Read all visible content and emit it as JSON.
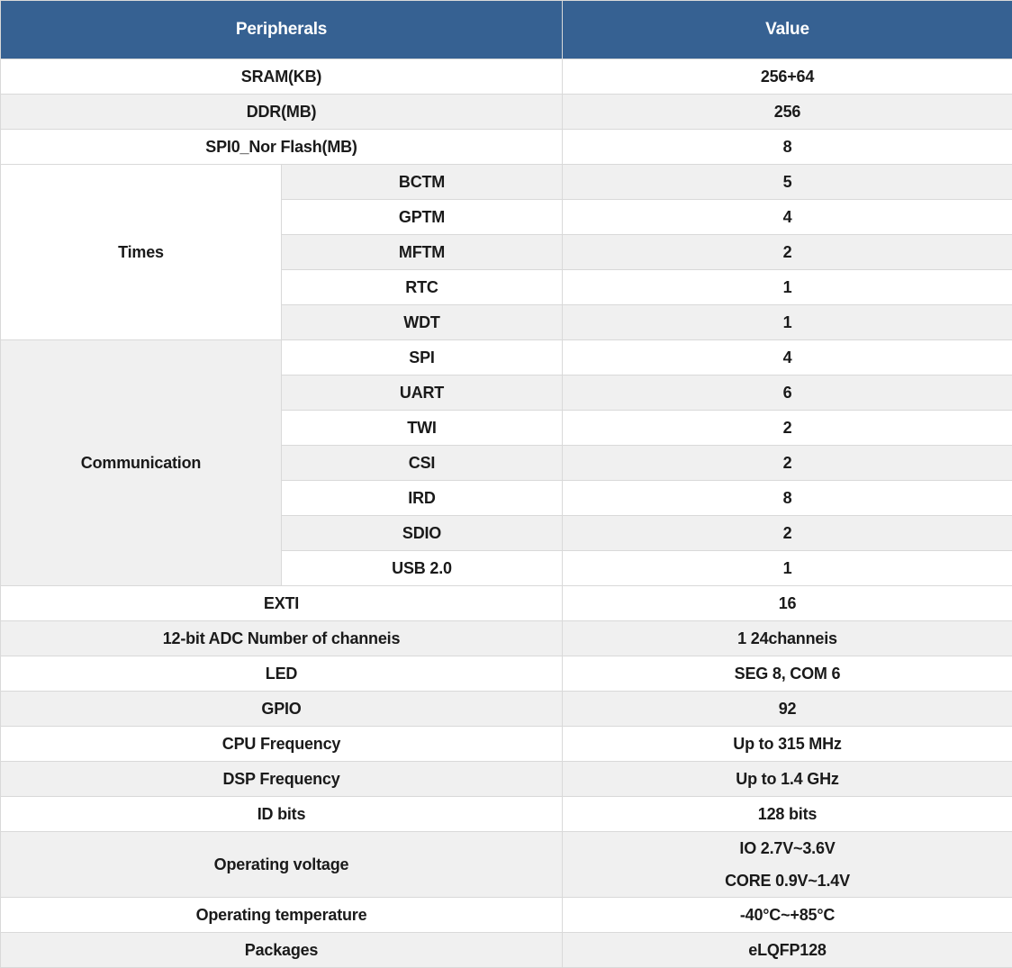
{
  "colors": {
    "header_bg": "#366192",
    "header_text": "#ffffff",
    "shaded_row": "#f0f0f0",
    "border": "#d9d9d9",
    "text": "#1a1a1a"
  },
  "table": {
    "columns": [
      "Peripherals",
      "Value"
    ],
    "rows": [
      {
        "label": "SRAM(KB)",
        "value": "256+64",
        "shaded": false
      },
      {
        "label": "DDR(MB)",
        "value": "256",
        "shaded": true
      },
      {
        "label": "SPI0_Nor Flash(MB)",
        "value": "8",
        "shaded": false
      },
      {
        "group": "Times",
        "group_shaded": false,
        "items": [
          {
            "label": "BCTM",
            "value": "5",
            "shaded": true
          },
          {
            "label": "GPTM",
            "value": "4",
            "shaded": false
          },
          {
            "label": "MFTM",
            "value": "2",
            "shaded": true
          },
          {
            "label": "RTC",
            "value": "1",
            "shaded": false
          },
          {
            "label": "WDT",
            "value": "1",
            "shaded": true
          }
        ]
      },
      {
        "group": "Communication",
        "group_shaded": true,
        "items": [
          {
            "label": "SPI",
            "value": "4",
            "shaded": false
          },
          {
            "label": "UART",
            "value": "6",
            "shaded": true
          },
          {
            "label": "TWI",
            "value": "2",
            "shaded": false
          },
          {
            "label": "CSI",
            "value": "2",
            "shaded": true
          },
          {
            "label": "IRD",
            "value": "8",
            "shaded": false
          },
          {
            "label": "SDIO",
            "value": "2",
            "shaded": true
          },
          {
            "label": "USB 2.0",
            "value": "1",
            "shaded": false
          }
        ]
      },
      {
        "label": "EXTI",
        "value": "16",
        "shaded": false
      },
      {
        "label": "12-bit ADC Number of channeis",
        "value": "1 24channeis",
        "shaded": true
      },
      {
        "label": "LED",
        "value": "SEG 8, COM 6",
        "shaded": false
      },
      {
        "label": "GPIO",
        "value": "92",
        "shaded": true
      },
      {
        "label": "CPU Frequency",
        "value": "Up to 315 MHz",
        "shaded": false
      },
      {
        "label": "DSP Frequency",
        "value": "Up to 1.4 GHz",
        "shaded": true
      },
      {
        "label": "ID bits",
        "value": "128 bits",
        "shaded": false
      },
      {
        "label": "Operating voltage",
        "value_lines": [
          "IO 2.7V~3.6V",
          "CORE 0.9V~1.4V"
        ],
        "shaded": true
      },
      {
        "label": "Operating temperature",
        "value": "-40°C~+85°C",
        "shaded": false
      },
      {
        "label": "Packages",
        "value": "eLQFP128",
        "shaded": true
      }
    ]
  }
}
